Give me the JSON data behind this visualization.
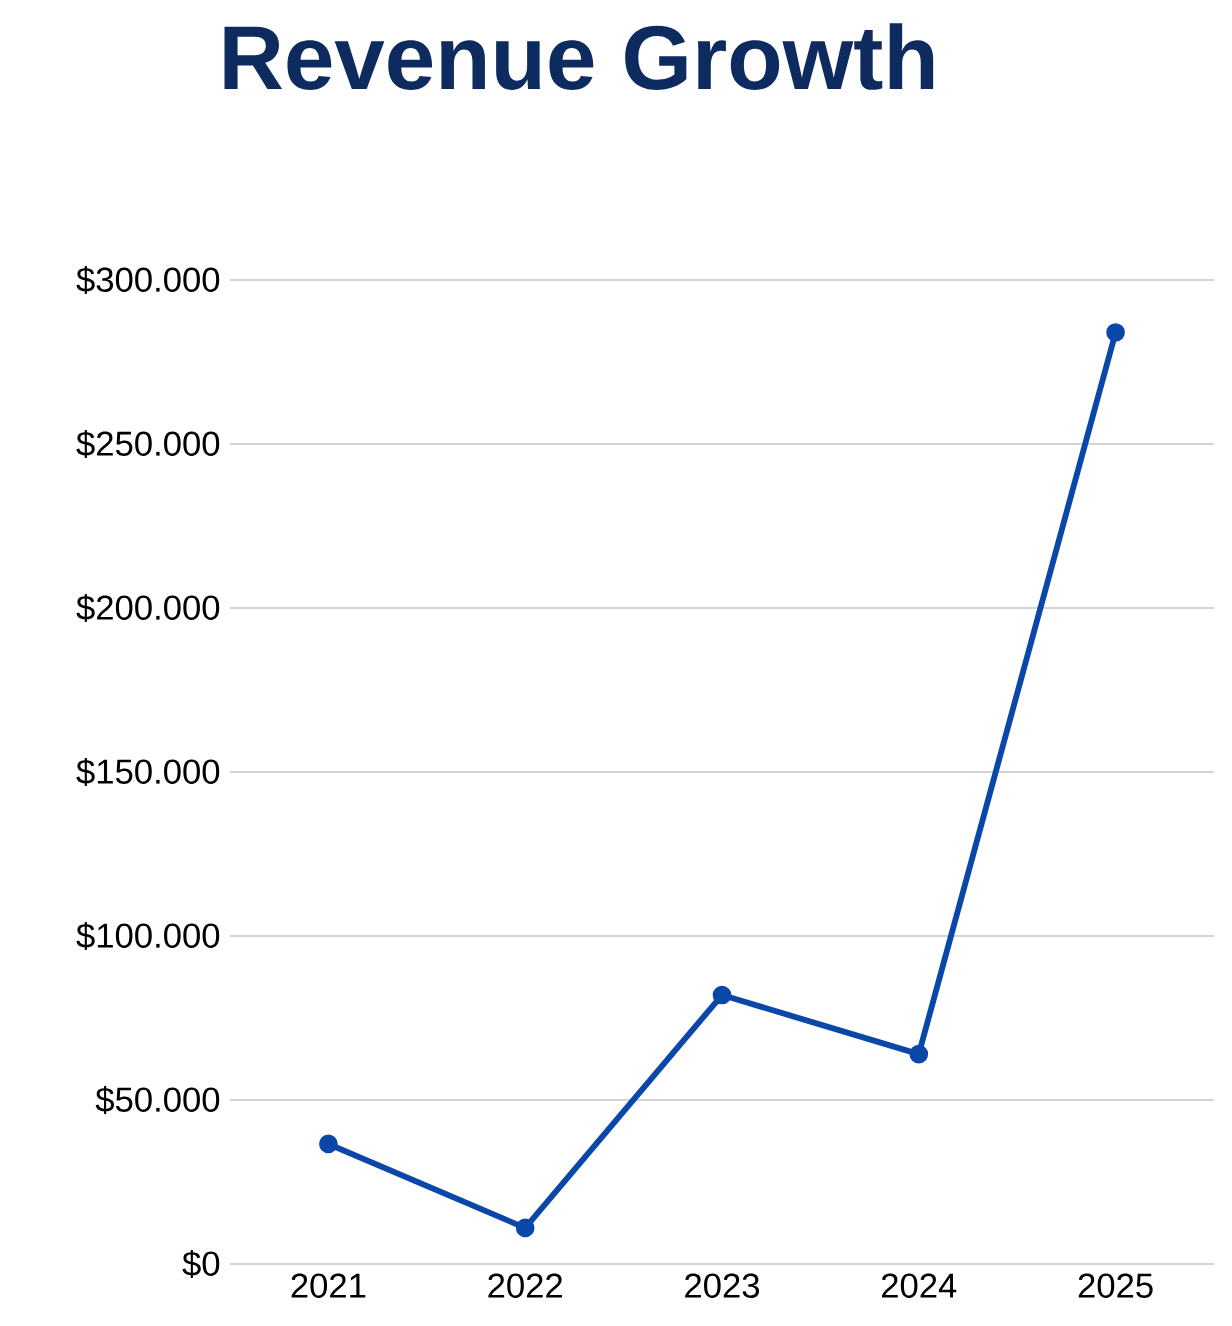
{
  "chart_data": {
    "type": "line",
    "title": "Revenue Growth",
    "categories": [
      "2021",
      "2022",
      "2023",
      "2024",
      "2025"
    ],
    "series": [
      {
        "color": "#0a47a8",
        "values": [
          36600,
          11000,
          82000,
          64000,
          284000
        ]
      }
    ],
    "ylim": [
      0,
      300000
    ],
    "yticks": [
      {
        "value": 0,
        "label": "$0"
      },
      {
        "value": 50000,
        "label": "$50.000"
      },
      {
        "value": 100000,
        "label": "$100.000"
      },
      {
        "value": 150000,
        "label": "$150.000"
      },
      {
        "value": 200000,
        "label": "$200.000"
      },
      {
        "value": 250000,
        "label": "$250.000"
      },
      {
        "value": 300000,
        "label": "$300.000"
      }
    ],
    "grid": "y",
    "marker": "circle",
    "line_style": "solid"
  }
}
